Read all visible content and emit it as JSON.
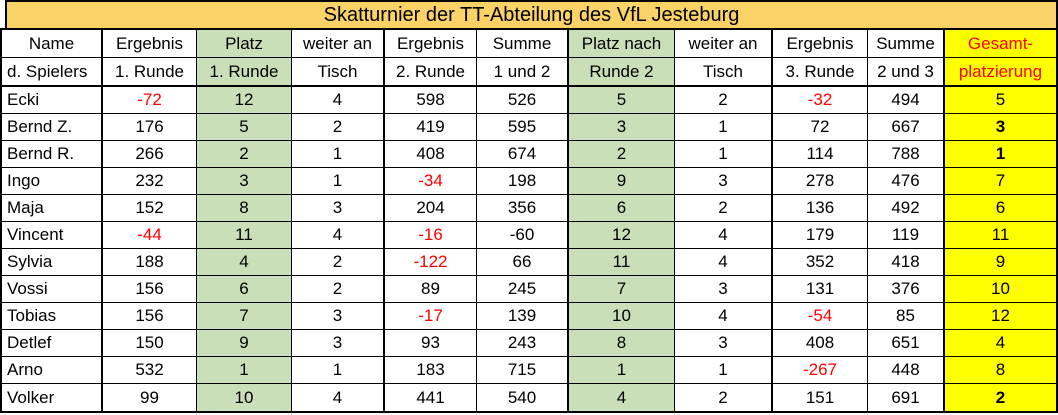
{
  "title": "Skatturnier der TT-Abteilung des VfL Jesteburg",
  "colors": {
    "title_bg": "#FAD265",
    "platz_column_bg": "#C9DFB8",
    "gesamt_column_bg": "#FFFF00",
    "negative_value_text": "#FF0000",
    "gesamt_header_text": "#FF0000",
    "grid_line": "#000000"
  },
  "columns": [
    {
      "id": "name",
      "line1": "Name",
      "line2": "d. Spielers",
      "bg": "white"
    },
    {
      "id": "ergebnis1",
      "line1": "Ergebnis",
      "line2": "1. Runde",
      "bg": "white"
    },
    {
      "id": "platz1",
      "line1": "Platz",
      "line2": "1. Runde",
      "bg": "green"
    },
    {
      "id": "tisch1",
      "line1": "weiter an",
      "line2": "Tisch",
      "bg": "white"
    },
    {
      "id": "ergebnis2",
      "line1": "Ergebnis",
      "line2": "2. Runde",
      "bg": "white"
    },
    {
      "id": "summe12",
      "line1": "Summe",
      "line2": "1 und 2",
      "bg": "white"
    },
    {
      "id": "platz2",
      "line1": "Platz nach",
      "line2": "Runde 2",
      "bg": "green"
    },
    {
      "id": "tisch2",
      "line1": "weiter an",
      "line2": "Tisch",
      "bg": "white"
    },
    {
      "id": "ergebnis3",
      "line1": "Ergebnis",
      "line2": "3. Runde",
      "bg": "white"
    },
    {
      "id": "summe23",
      "line1": "Summe",
      "line2": "2 und 3",
      "bg": "white"
    },
    {
      "id": "gesamt",
      "line1": "Gesamt-",
      "line2": "platzierung",
      "bg": "yellow"
    }
  ],
  "rows": [
    {
      "name": "Ecki",
      "cells": [
        {
          "v": "-72",
          "red": true
        },
        {
          "v": "12"
        },
        {
          "v": "4"
        },
        {
          "v": "598"
        },
        {
          "v": "526"
        },
        {
          "v": "5"
        },
        {
          "v": "2"
        },
        {
          "v": "-32",
          "red": true
        },
        {
          "v": "494"
        },
        {
          "v": "5"
        }
      ]
    },
    {
      "name": "Bernd Z.",
      "cells": [
        {
          "v": "176"
        },
        {
          "v": "5"
        },
        {
          "v": "2"
        },
        {
          "v": "419"
        },
        {
          "v": "595"
        },
        {
          "v": "3"
        },
        {
          "v": "1"
        },
        {
          "v": "72"
        },
        {
          "v": "667"
        },
        {
          "v": "3",
          "bold": true
        }
      ]
    },
    {
      "name": "Bernd R.",
      "cells": [
        {
          "v": "266"
        },
        {
          "v": "2"
        },
        {
          "v": "1"
        },
        {
          "v": "408"
        },
        {
          "v": "674"
        },
        {
          "v": "2"
        },
        {
          "v": "1"
        },
        {
          "v": "114"
        },
        {
          "v": "788"
        },
        {
          "v": "1",
          "bold": true
        }
      ]
    },
    {
      "name": "Ingo",
      "cells": [
        {
          "v": "232"
        },
        {
          "v": "3"
        },
        {
          "v": "1"
        },
        {
          "v": "-34",
          "red": true
        },
        {
          "v": "198"
        },
        {
          "v": "9"
        },
        {
          "v": "3"
        },
        {
          "v": "278"
        },
        {
          "v": "476"
        },
        {
          "v": "7"
        }
      ]
    },
    {
      "name": "Maja",
      "cells": [
        {
          "v": "152"
        },
        {
          "v": "8"
        },
        {
          "v": "3"
        },
        {
          "v": "204"
        },
        {
          "v": "356"
        },
        {
          "v": "6"
        },
        {
          "v": "2"
        },
        {
          "v": "136"
        },
        {
          "v": "492"
        },
        {
          "v": "6"
        }
      ]
    },
    {
      "name": "Vincent",
      "cells": [
        {
          "v": "-44",
          "red": true
        },
        {
          "v": "11"
        },
        {
          "v": "4"
        },
        {
          "v": "-16",
          "red": true
        },
        {
          "v": "-60"
        },
        {
          "v": "12"
        },
        {
          "v": "4"
        },
        {
          "v": "179"
        },
        {
          "v": "119"
        },
        {
          "v": "11"
        }
      ]
    },
    {
      "name": "Sylvia",
      "cells": [
        {
          "v": "188"
        },
        {
          "v": "4"
        },
        {
          "v": "2"
        },
        {
          "v": "-122",
          "red": true
        },
        {
          "v": "66"
        },
        {
          "v": "11"
        },
        {
          "v": "4"
        },
        {
          "v": "352"
        },
        {
          "v": "418"
        },
        {
          "v": "9"
        }
      ]
    },
    {
      "name": "Vossi",
      "cells": [
        {
          "v": "156"
        },
        {
          "v": "6"
        },
        {
          "v": "2"
        },
        {
          "v": "89"
        },
        {
          "v": "245"
        },
        {
          "v": "7"
        },
        {
          "v": "3"
        },
        {
          "v": "131"
        },
        {
          "v": "376"
        },
        {
          "v": "10"
        }
      ]
    },
    {
      "name": "Tobias",
      "cells": [
        {
          "v": "156"
        },
        {
          "v": "7"
        },
        {
          "v": "3"
        },
        {
          "v": "-17",
          "red": true
        },
        {
          "v": "139"
        },
        {
          "v": "10"
        },
        {
          "v": "4"
        },
        {
          "v": "-54",
          "red": true
        },
        {
          "v": "85"
        },
        {
          "v": "12"
        }
      ]
    },
    {
      "name": "Detlef",
      "cells": [
        {
          "v": "150"
        },
        {
          "v": "9"
        },
        {
          "v": "3"
        },
        {
          "v": "93"
        },
        {
          "v": "243"
        },
        {
          "v": "8"
        },
        {
          "v": "3"
        },
        {
          "v": "408"
        },
        {
          "v": "651"
        },
        {
          "v": "4"
        }
      ]
    },
    {
      "name": "Arno",
      "cells": [
        {
          "v": "532"
        },
        {
          "v": "1"
        },
        {
          "v": "1"
        },
        {
          "v": "183"
        },
        {
          "v": "715"
        },
        {
          "v": "1"
        },
        {
          "v": "1"
        },
        {
          "v": "-267",
          "red": true
        },
        {
          "v": "448"
        },
        {
          "v": "8"
        }
      ]
    },
    {
      "name": "Volker",
      "cells": [
        {
          "v": "99"
        },
        {
          "v": "10"
        },
        {
          "v": "4"
        },
        {
          "v": "441"
        },
        {
          "v": "540"
        },
        {
          "v": "4"
        },
        {
          "v": "2"
        },
        {
          "v": "151"
        },
        {
          "v": "691"
        },
        {
          "v": "2",
          "bold": true
        }
      ]
    }
  ]
}
